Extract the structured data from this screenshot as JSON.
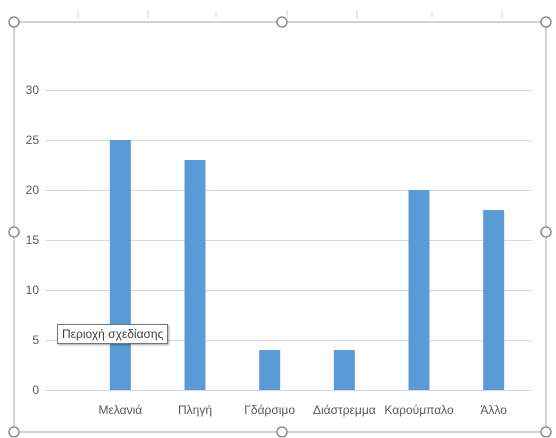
{
  "chart_data": {
    "type": "bar",
    "categories": [
      "Μελανιά",
      "Πληγή",
      "Γδάρσιμο",
      "Διάστρεμμα",
      "Καρούμπαλο",
      "Άλλο"
    ],
    "values": [
      25,
      23,
      4,
      4,
      20,
      18
    ],
    "ylim": [
      0,
      30
    ],
    "yticks": [
      0,
      5,
      10,
      15,
      20,
      25,
      30
    ],
    "grid": true,
    "bar_color": "#5b9bd5"
  },
  "tooltip": {
    "text": "Περιοχή σχεδίασης"
  },
  "colors": {
    "gridline": "#d9d9d9",
    "frame": "#a6a6a6",
    "handle_fill": "#ffffff",
    "handle_stroke": "#7f7f7f"
  }
}
